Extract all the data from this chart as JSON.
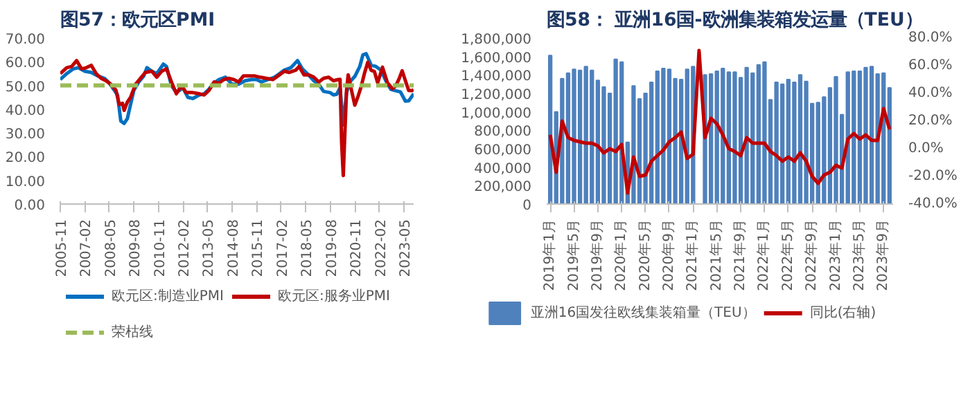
{
  "chart_data": [
    {
      "type": "line",
      "title": "图57：欧元区PMI",
      "xlim": [
        "2005-11",
        "2023-11"
      ],
      "xticks": [
        "2005-11",
        "2007-02",
        "2008-05",
        "2009-08",
        "2010-11",
        "2012-02",
        "2013-05",
        "2014-08",
        "2015-11",
        "2017-02",
        "2018-05",
        "2019-08",
        "2020-11",
        "2022-02",
        "2023-05"
      ],
      "ylim": [
        0,
        70
      ],
      "yticks": [
        {
          "value": 0,
          "label": "0.00"
        },
        {
          "value": 10,
          "label": "10.00"
        },
        {
          "value": 20,
          "label": "20.00"
        },
        {
          "value": 30,
          "label": "30.00"
        },
        {
          "value": 40,
          "label": "40.00"
        },
        {
          "value": 50,
          "label": "50.00"
        },
        {
          "value": 60,
          "label": "60.00"
        },
        {
          "value": 70,
          "label": "70.00"
        }
      ],
      "grid": false,
      "legend": "bottom",
      "series": [
        {
          "name": "欧元区:制造业PMI",
          "color": "#0070c0",
          "x": [
            "2005-11",
            "2006-03",
            "2006-07",
            "2006-10",
            "2007-02",
            "2007-06",
            "2007-10",
            "2008-02",
            "2008-05",
            "2008-08",
            "2008-10",
            "2008-12",
            "2009-02",
            "2009-04",
            "2009-06",
            "2009-08",
            "2009-11",
            "2010-02",
            "2010-04",
            "2010-07",
            "2010-10",
            "2011-02",
            "2011-04",
            "2011-07",
            "2011-10",
            "2012-02",
            "2012-05",
            "2012-08",
            "2012-12",
            "2013-03",
            "2013-06",
            "2013-09",
            "2013-12",
            "2014-04",
            "2014-08",
            "2014-12",
            "2015-04",
            "2015-08",
            "2015-11",
            "2016-02",
            "2016-06",
            "2016-10",
            "2017-01",
            "2017-04",
            "2017-08",
            "2017-12",
            "2018-03",
            "2018-06",
            "2018-10",
            "2019-01",
            "2019-04",
            "2019-08",
            "2019-10",
            "2019-12",
            "2020-02",
            "2020-04",
            "2020-06",
            "2020-08",
            "2020-11",
            "2021-02",
            "2021-04",
            "2021-06",
            "2021-09",
            "2021-12",
            "2022-03",
            "2022-06",
            "2022-09",
            "2022-12",
            "2023-03",
            "2023-06",
            "2023-08",
            "2023-11"
          ],
          "values": [
            52.5,
            55,
            57,
            57.5,
            56,
            55.5,
            54,
            53,
            51,
            48,
            46,
            35,
            34,
            36,
            42,
            48,
            51.5,
            54,
            57.5,
            56,
            55,
            59,
            58,
            50,
            47,
            49,
            45,
            44.5,
            46,
            46.5,
            48.5,
            51,
            52.5,
            53.5,
            50.5,
            50.5,
            52,
            52.5,
            52.5,
            51.5,
            52.5,
            53.5,
            55,
            56.5,
            57.5,
            60.5,
            57,
            55,
            52,
            50.5,
            47.5,
            47,
            46,
            46.3,
            49,
            33.4,
            47,
            51.5,
            53.8,
            57.9,
            62.9,
            63.4,
            58.6,
            58,
            56.5,
            52,
            48.4,
            47.8,
            47.3,
            43.4,
            43.5,
            46.5
          ]
        },
        {
          "name": "欧元区:服务业PMI",
          "color": "#c00000",
          "x": [
            "2005-11",
            "2006-03",
            "2006-06",
            "2006-09",
            "2006-12",
            "2007-03",
            "2007-06",
            "2007-09",
            "2007-12",
            "2008-03",
            "2008-06",
            "2008-09",
            "2008-11",
            "2009-01",
            "2009-02",
            "2009-04",
            "2009-06",
            "2009-09",
            "2009-12",
            "2010-03",
            "2010-07",
            "2010-10",
            "2011-01",
            "2011-04",
            "2011-07",
            "2011-10",
            "2012-01",
            "2012-04",
            "2012-08",
            "2012-12",
            "2013-03",
            "2013-06",
            "2013-09",
            "2013-12",
            "2014-03",
            "2014-06",
            "2014-09",
            "2014-12",
            "2015-03",
            "2015-06",
            "2015-10",
            "2016-01",
            "2016-05",
            "2016-09",
            "2016-12",
            "2017-04",
            "2017-07",
            "2017-11",
            "2018-01",
            "2018-04",
            "2018-07",
            "2018-10",
            "2019-01",
            "2019-04",
            "2019-07",
            "2019-10",
            "2020-01",
            "2020-02",
            "2020-03",
            "2020-04",
            "2020-05",
            "2020-06",
            "2020-07",
            "2020-09",
            "2020-11",
            "2021-01",
            "2021-03",
            "2021-05",
            "2021-07",
            "2021-09",
            "2021-11",
            "2022-01",
            "2022-04",
            "2022-07",
            "2022-10",
            "2022-12",
            "2023-02",
            "2023-04",
            "2023-06",
            "2023-08",
            "2023-10",
            "2023-11"
          ],
          "values": [
            55,
            57.5,
            58,
            60.5,
            57,
            57.5,
            58.5,
            55,
            53,
            52,
            50.5,
            48,
            42,
            42.5,
            39.5,
            43,
            45,
            50.5,
            53,
            55.5,
            56,
            53.5,
            56,
            57,
            51.5,
            46.5,
            50,
            47,
            47,
            46.5,
            46,
            48,
            51.5,
            51,
            52.5,
            53,
            52.5,
            51.5,
            54,
            54,
            54,
            53.5,
            53,
            52.5,
            54,
            56,
            55.5,
            56.5,
            58,
            54.5,
            54.5,
            53.5,
            51.5,
            53,
            53.5,
            52,
            52.5,
            52.6,
            26,
            12,
            30,
            48,
            54.5,
            48,
            41.7,
            45.4,
            49.6,
            55.2,
            59.8,
            56.4,
            55.9,
            51.1,
            57.7,
            51.2,
            48.6,
            49.8,
            52.7,
            56.2,
            52,
            47.9,
            47.8,
            48.2
          ]
        },
        {
          "name": "荣枯线",
          "color": "#9bbb59",
          "line_style": "dashed",
          "x": [
            "2005-11",
            "2023-11"
          ],
          "values": [
            50,
            50
          ]
        }
      ]
    },
    {
      "type": "bar",
      "title": "图58：  亚洲16国-欧洲集装箱发运量（TEU）",
      "categories": [
        "2019年1月",
        null,
        null,
        null,
        "2019年5月",
        null,
        null,
        null,
        "2019年9月",
        null,
        null,
        null,
        "2020年1月",
        null,
        null,
        null,
        "2020年5月",
        null,
        null,
        null,
        "2020年9月",
        null,
        null,
        null,
        "2021年1月",
        null,
        null,
        null,
        "2021年5月",
        null,
        null,
        null,
        "2021年9月",
        null,
        null,
        null,
        "2022年1月",
        null,
        null,
        null,
        "2022年5月",
        null,
        null,
        null,
        "2022年9月",
        null,
        null,
        null,
        "2023年1月",
        null,
        null,
        null,
        "2023年5月",
        null,
        null,
        null,
        "2023年9月",
        null
      ],
      "ylim": [
        0,
        1800000
      ],
      "yticks": [
        0,
        {
          "value": 200000,
          "label": "200,000"
        },
        {
          "value": 400000,
          "label": "400,000"
        },
        {
          "value": 600000,
          "label": "600,000"
        },
        {
          "value": 800000,
          "label": "800,000"
        },
        {
          "value": 1000000,
          "label": "1,000,000"
        },
        {
          "value": 1200000,
          "label": "1,200,000"
        },
        {
          "value": 1400000,
          "label": "1,400,000"
        },
        {
          "value": 1600000,
          "label": "1,600,000"
        },
        {
          "value": 1800000,
          "label": "1,800,000"
        }
      ],
      "y2lim": [
        -40,
        80
      ],
      "y2ticks": [
        {
          "value": -40,
          "label": "-40.0%"
        },
        {
          "value": -20,
          "label": "-20.0%"
        },
        {
          "value": 0,
          "label": "0.0%"
        },
        {
          "value": 20,
          "label": "20.0%"
        },
        {
          "value": 40,
          "label": "40.0%"
        },
        {
          "value": 60,
          "label": "60.0%"
        },
        {
          "value": 80,
          "label": "80.0%"
        }
      ],
      "grid": false,
      "legend": "bottom",
      "series": [
        {
          "name": "亚洲16国发往欧线集装箱量（TEU）",
          "color": "#4f81bd",
          "values": [
            1610000,
            1000000,
            1360000,
            1420000,
            1460000,
            1450000,
            1490000,
            1450000,
            1340000,
            1270000,
            1200000,
            1570000,
            1540000,
            670000,
            1280000,
            1140000,
            1200000,
            1320000,
            1440000,
            1470000,
            1460000,
            1360000,
            1350000,
            1460000,
            1490000,
            null,
            1400000,
            1410000,
            1440000,
            1470000,
            1430000,
            1430000,
            1370000,
            1480000,
            1420000,
            1510000,
            1540000,
            1130000,
            1320000,
            1300000,
            1350000,
            1320000,
            1400000,
            1330000,
            1090000,
            1100000,
            1160000,
            1260000,
            1380000,
            970000,
            1430000,
            1440000,
            1440000,
            1480000,
            1490000,
            1410000,
            1420000,
            1260000
          ]
        },
        {
          "name": "同比(右轴)",
          "color": "#c00000",
          "type": "line",
          "axis": "y2",
          "values": [
            10,
            -17,
            20,
            8,
            6,
            5,
            4,
            4,
            2,
            -3,
            0,
            -2,
            3,
            -32,
            -6,
            -20,
            -19,
            -9,
            -5,
            -1,
            5,
            8,
            12,
            -7,
            -4,
            71,
            8,
            22,
            18,
            10,
            0,
            -2,
            -5,
            8,
            4,
            4,
            4,
            -2,
            -5,
            -9,
            -6,
            -9,
            -3,
            -9,
            -20,
            -25,
            -19,
            -17,
            -12,
            -14,
            7,
            11,
            7,
            10,
            6,
            6,
            29,
            14
          ]
        }
      ]
    }
  ]
}
